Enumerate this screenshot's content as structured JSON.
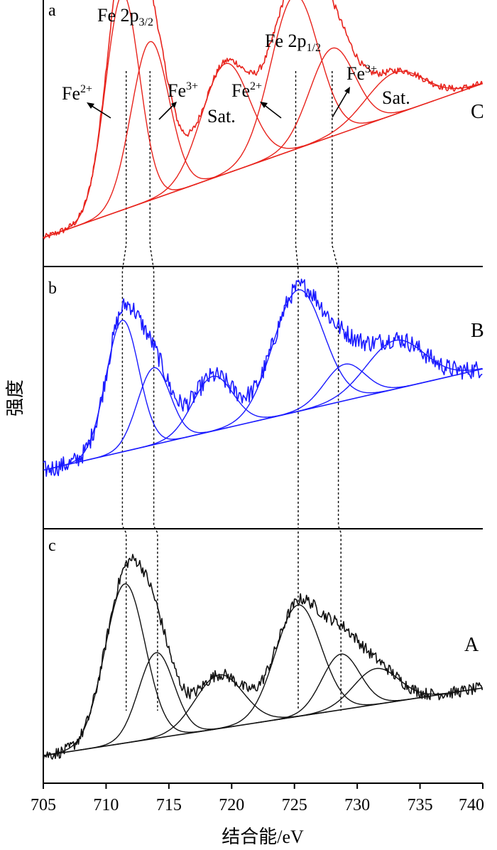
{
  "chart_data": {
    "type": "line",
    "xlabel": "结合能/eV",
    "ylabel": "强度",
    "x_ticks": [
      705,
      710,
      715,
      720,
      725,
      730,
      735,
      740
    ],
    "xlim": [
      705,
      740
    ],
    "y_ticks": [],
    "panels": [
      {
        "letter": "a",
        "sample": "C",
        "color": "#e8231c",
        "baseline_start": 0.05,
        "baseline_end": 0.75,
        "noise": 0.03,
        "peaks": [
          {
            "center": 711.3,
            "height": 0.98,
            "width": 1.35
          },
          {
            "center": 713.5,
            "height": 0.72,
            "width": 1.5
          },
          {
            "center": 719.5,
            "height": 0.5,
            "width": 1.9
          },
          {
            "center": 725.0,
            "height": 0.7,
            "width": 1.9
          },
          {
            "center": 728.0,
            "height": 0.4,
            "width": 1.8
          },
          {
            "center": 733.0,
            "height": 0.19,
            "width": 2.3
          }
        ],
        "annotations": {
          "fe2p32": {
            "base": "Fe 2p",
            "script": "3/2"
          },
          "fe2p12": {
            "base": "Fe 2p",
            "script": "1/2"
          },
          "fe2_left": {
            "base": "Fe",
            "script": "2+"
          },
          "fe3_left": {
            "base": "Fe",
            "script": "3+"
          },
          "sat_left": "Sat.",
          "fe2_right": {
            "base": "Fe",
            "script": "2+"
          },
          "fe3_right": {
            "base": "Fe",
            "script": "3+"
          },
          "sat_right": "Sat."
        }
      },
      {
        "letter": "b",
        "sample": "B",
        "color": "#1a1aff",
        "baseline_start": 0.1,
        "baseline_end": 0.6,
        "noise": 0.09,
        "peaks": [
          {
            "center": 711.3,
            "height": 0.65,
            "width": 1.3
          },
          {
            "center": 713.8,
            "height": 0.38,
            "width": 1.3
          },
          {
            "center": 718.5,
            "height": 0.27,
            "width": 1.6
          },
          {
            "center": 725.3,
            "height": 0.6,
            "width": 2.0
          },
          {
            "center": 729.0,
            "height": 0.18,
            "width": 1.6
          },
          {
            "center": 733.0,
            "height": 0.24,
            "width": 2.3
          }
        ]
      },
      {
        "letter": "c",
        "sample": "A",
        "color": "#111111",
        "baseline_start": 0.06,
        "baseline_end": 0.4,
        "noise": 0.06,
        "peaks": [
          {
            "center": 711.5,
            "height": 0.8,
            "width": 1.6
          },
          {
            "center": 714.0,
            "height": 0.43,
            "width": 1.4
          },
          {
            "center": 719.0,
            "height": 0.27,
            "width": 1.9
          },
          {
            "center": 725.3,
            "height": 0.56,
            "width": 1.8
          },
          {
            "center": 728.7,
            "height": 0.28,
            "width": 1.5
          },
          {
            "center": 731.5,
            "height": 0.18,
            "width": 1.8
          }
        ]
      }
    ],
    "guide_lines": [
      {
        "points": [
          711.6,
          711.3,
          711.6
        ]
      },
      {
        "points": [
          713.5,
          713.8,
          714.1
        ]
      },
      {
        "points": [
          725.1,
          725.3,
          725.3
        ]
      },
      {
        "points": [
          728.0,
          728.5,
          728.7
        ]
      }
    ]
  }
}
